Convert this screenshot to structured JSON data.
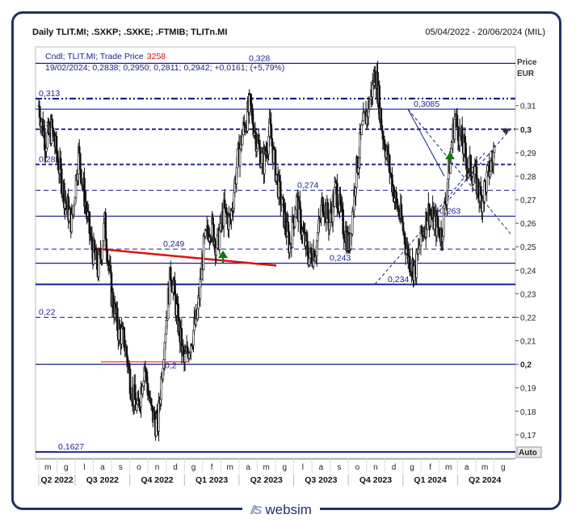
{
  "header": {
    "title": "Daily TLIT.MI; .SXKP; .SXKE; .FTMIB; TLITn.MI",
    "date_range": "05/04/2022 - 20/06/2024 (MIL)"
  },
  "legend": {
    "line1_prefix": "Cndl; TLIT.MI; Trade Price",
    "line1_volume": "3258",
    "line2": "19/02/2024; 0,2838; 0,2950; 0,2811; 0,2942; +0,0161; (+5,79%)"
  },
  "axis": {
    "price_label": "Price",
    "currency_label": "EUR",
    "auto_label": "Auto"
  },
  "logo": {
    "mark": "//S",
    "text": "websim"
  },
  "colors": {
    "frame": "#1e3263",
    "level_line": "#1a1f8a",
    "trend_red": "#e01010",
    "arrow_green": "#0a7a0a",
    "candles": "#111111"
  },
  "chart_data": {
    "type": "candlestick",
    "title": "Daily TLIT.MI; .SXKP; .SXKE; .FTMIB; TLITn.MI",
    "ylabel": "Price EUR",
    "ylim": [
      0.16,
      0.335
    ],
    "y_ticks": [
      "0,17",
      "0,18",
      "0,19",
      "0,2",
      "0,21",
      "0,22",
      "0,23",
      "0,24",
      "0,25",
      "0,26",
      "0,27",
      "0,28",
      "0,29",
      "0,3",
      "0,31"
    ],
    "x_months": [
      "m",
      "g",
      "l",
      "a",
      "s",
      "o",
      "n",
      "d",
      "g",
      "f",
      "m",
      "a",
      "m",
      "g",
      "l",
      "a",
      "s",
      "o",
      "n",
      "d",
      "g",
      "f",
      "m",
      "a",
      "m",
      "g"
    ],
    "quarters": [
      "Q2 2022",
      "Q3 2022",
      "Q4 2022",
      "Q1 2023",
      "Q2 2023",
      "Q3 2023",
      "Q4 2023",
      "Q1 2024",
      "Q2 2024"
    ],
    "grid": false,
    "price_path": [
      [
        0,
        0.31
      ],
      [
        1,
        0.295
      ],
      [
        2,
        0.3
      ],
      [
        3,
        0.285
      ],
      [
        4,
        0.27
      ],
      [
        5,
        0.26
      ],
      [
        6,
        0.29
      ],
      [
        7,
        0.27
      ],
      [
        8,
        0.25
      ],
      [
        9,
        0.24
      ],
      [
        10,
        0.26
      ],
      [
        11,
        0.23
      ],
      [
        12,
        0.215
      ],
      [
        13,
        0.21
      ],
      [
        14,
        0.19
      ],
      [
        15,
        0.18
      ],
      [
        16,
        0.2
      ],
      [
        17,
        0.18
      ],
      [
        18,
        0.173
      ],
      [
        19,
        0.21
      ],
      [
        20,
        0.24
      ],
      [
        21,
        0.22
      ],
      [
        22,
        0.2
      ],
      [
        23,
        0.21
      ],
      [
        24,
        0.22
      ],
      [
        25,
        0.25
      ],
      [
        26,
        0.26
      ],
      [
        27,
        0.25
      ],
      [
        28,
        0.265
      ],
      [
        29,
        0.26
      ],
      [
        30,
        0.285
      ],
      [
        31,
        0.3
      ],
      [
        32,
        0.31
      ],
      [
        33,
        0.295
      ],
      [
        34,
        0.285
      ],
      [
        35,
        0.3
      ],
      [
        36,
        0.28
      ],
      [
        37,
        0.265
      ],
      [
        38,
        0.25
      ],
      [
        39,
        0.27
      ],
      [
        40,
        0.255
      ],
      [
        41,
        0.245
      ],
      [
        42,
        0.25
      ],
      [
        43,
        0.27
      ],
      [
        44,
        0.26
      ],
      [
        45,
        0.275
      ],
      [
        46,
        0.26
      ],
      [
        47,
        0.25
      ],
      [
        48,
        0.28
      ],
      [
        49,
        0.3
      ],
      [
        50,
        0.31
      ],
      [
        51,
        0.325
      ],
      [
        52,
        0.3
      ],
      [
        53,
        0.285
      ],
      [
        54,
        0.27
      ],
      [
        55,
        0.26
      ],
      [
        56,
        0.245
      ],
      [
        57,
        0.24
      ],
      [
        58,
        0.255
      ],
      [
        59,
        0.265
      ],
      [
        60,
        0.26
      ],
      [
        61,
        0.255
      ],
      [
        62,
        0.28
      ],
      [
        63,
        0.305
      ],
      [
        64,
        0.295
      ],
      [
        65,
        0.285
      ],
      [
        66,
        0.28
      ],
      [
        67,
        0.27
      ],
      [
        68,
        0.28
      ],
      [
        69,
        0.29
      ]
    ],
    "price_path_index_note": "",
    "levels": [
      {
        "value": 0.328,
        "label": "0,328",
        "style": "solid"
      },
      {
        "value": 0.313,
        "label": "0,313",
        "style": "dashdot"
      },
      {
        "value": 0.3085,
        "label": "0,3085",
        "style": "solid"
      },
      {
        "value": 0.3,
        "label": "0,3",
        "style": "dashed"
      },
      {
        "value": 0.285,
        "label": "0,285",
        "style": "dashed"
      },
      {
        "value": 0.274,
        "label": "0,274",
        "style": "dashed-thin"
      },
      {
        "value": 0.263,
        "label": "0,263",
        "style": "solid"
      },
      {
        "value": 0.249,
        "label": "0,249",
        "style": "dashed-thin"
      },
      {
        "value": 0.243,
        "label": "0,243",
        "style": "solid"
      },
      {
        "value": 0.234,
        "label": "0,234",
        "style": "solid-thick"
      },
      {
        "value": 0.22,
        "label": "0,22",
        "style": "dashed-thin"
      },
      {
        "value": 0.2,
        "label": "0,2",
        "style": "solid"
      },
      {
        "value": 0.1627,
        "label": "0,1627",
        "style": "solid-thick"
      }
    ],
    "marker_labels": [
      "0,2"
    ]
  }
}
